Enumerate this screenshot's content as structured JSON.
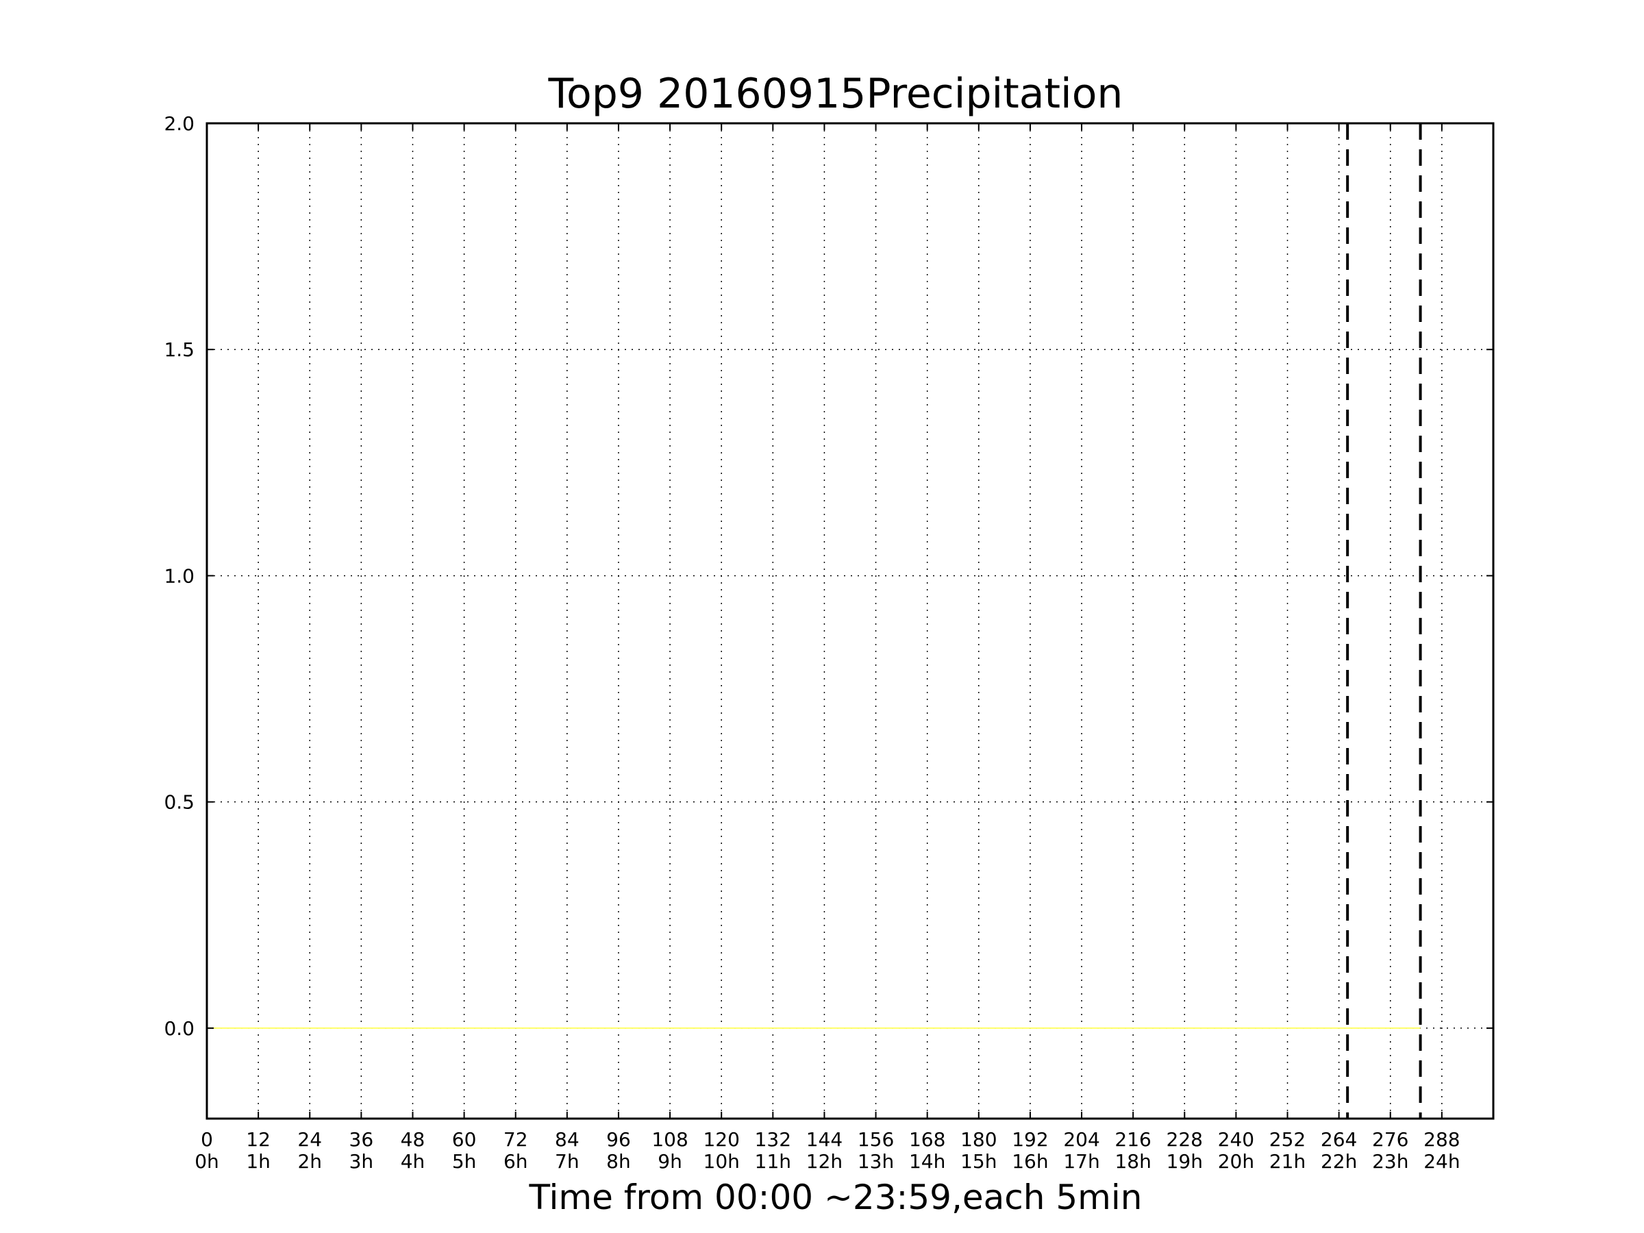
{
  "chart_data": {
    "type": "line",
    "title": "Top9 20160915Precipitation",
    "xlabel": "Time from 00:00 ~23:59,each 5min",
    "ylabel": "",
    "xlim": [
      0,
      300
    ],
    "ylim": [
      -0.2,
      2.0
    ],
    "grid": true,
    "x_ticks": [
      0,
      12,
      24,
      36,
      48,
      60,
      72,
      84,
      96,
      108,
      120,
      132,
      144,
      156,
      168,
      180,
      192,
      204,
      216,
      228,
      240,
      252,
      264,
      276,
      288
    ],
    "x_tick_labels": [
      "0\n0h",
      "12\n1h",
      "24\n2h",
      "36\n3h",
      "48\n4h",
      "60\n5h",
      "72\n6h",
      "84\n7h",
      "96\n8h",
      "108\n9h",
      "120\n10h",
      "132\n11h",
      "144\n12h",
      "156\n13h",
      "168\n14h",
      "180\n15h",
      "192\n16h",
      "204\n17h",
      "216\n18h",
      "228\n19h",
      "240\n20h",
      "252\n21h",
      "264\n22h",
      "276\n23h",
      "288\n24h"
    ],
    "y_ticks": [
      0.0,
      0.5,
      1.0,
      1.5,
      2.0
    ],
    "y_tick_labels": [
      "0.0",
      "0.5",
      "1.0",
      "1.5",
      "2.0"
    ],
    "series": [
      {
        "x": [
          0,
          283
        ],
        "y": [
          0.0,
          0.0
        ],
        "color": "#ffff66"
      }
    ],
    "vertical_dashed_lines": [
      266,
      283
    ],
    "colors": {
      "series": "#ffff66",
      "grid": "#000000",
      "markers": "#000000"
    }
  }
}
